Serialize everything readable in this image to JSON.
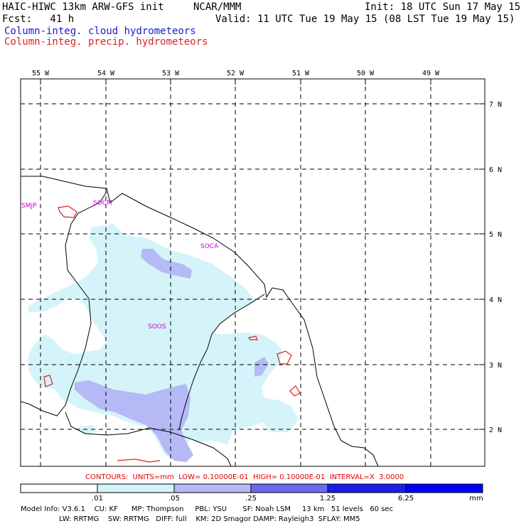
{
  "header": {
    "model_title": "HAIC-HIWC 13km ARW-GFS init",
    "org": "NCAR/MMM",
    "init": "Init: 18 UTC Sun 17 May 15",
    "fcst": "Fcst:   41 h",
    "valid": "Valid: 11 UTC Tue 19 May 15 (08 LST Tue 19 May 15)",
    "field_cloud": "Column-integ. cloud hydrometeors",
    "field_precip": "Column-integ. precip. hydrometeors",
    "cloud_color": "#1a1acc",
    "precip_color": "#dd2222"
  },
  "map": {
    "lon_labels": [
      "55 W",
      "54 W",
      "53 W",
      "52 W",
      "51 W",
      "50 W",
      "49 W"
    ],
    "lat_labels": [
      "7 N",
      "6 N",
      "5 N",
      "4 N",
      "3 N",
      "2 N"
    ],
    "stations": [
      "SMJP",
      "SOCM",
      "SOCA",
      "SOOS"
    ],
    "station_color": "#cc00cc",
    "line_color": "#000000"
  },
  "contours": {
    "text": "CONTOURS:  UNITS=mm  LOW= 0.10000E-01  HIGH= 0.10000E-01  INTERVAL=X  3.0000",
    "color": "#dd0000"
  },
  "colorbar": {
    "ticks": [
      ".01",
      ".05",
      ".25",
      "1.25",
      "6.25"
    ],
    "unit": "mm",
    "colors": [
      "#ffffff",
      "#d4f4fa",
      "#b5b9f5",
      "#6a6af0",
      "#1d1dea",
      "#0000ff"
    ]
  },
  "footer": {
    "line1": "Model Info: V3.6.1    CU: KF      MP: Thompson     PBL: YSU       SF: Noah LSM     13 km   51 levels   60 sec",
    "line2": "                 LW: RRTMG    SW: RRTMG   DIFF: full    KM: 2D Smagor DAMP: Rayleigh3  SFLAY: MM5"
  }
}
